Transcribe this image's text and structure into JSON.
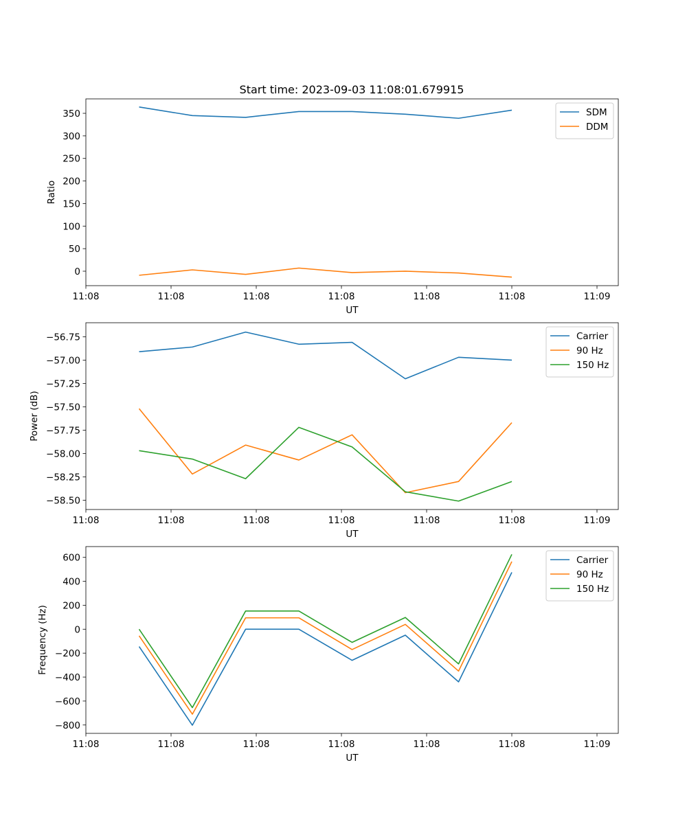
{
  "figure": {
    "title": "Start time: 2023-09-03 11:08:01.679915"
  },
  "colors": {
    "blue": "#1f77b4",
    "orange": "#ff7f0e",
    "green": "#2ca02c"
  },
  "chart_data": [
    {
      "type": "line",
      "title": "Start time: 2023-09-03 11:08:01.679915",
      "xlabel": "UT",
      "ylabel": "Ratio",
      "x": [
        1,
        2,
        3,
        4,
        5,
        6,
        7,
        8
      ],
      "xlim": [
        0,
        10
      ],
      "x_ticks": [
        0,
        1.6,
        3.2,
        4.8,
        6.4,
        8.0,
        9.6
      ],
      "x_tick_labels": [
        "11:08",
        "11:08",
        "11:08",
        "11:08",
        "11:08",
        "11:08",
        "11:09"
      ],
      "ylim": [
        -32,
        382
      ],
      "y_ticks": [
        0,
        50,
        100,
        150,
        200,
        250,
        300,
        350
      ],
      "y_tick_labels": [
        "0",
        "50",
        "100",
        "150",
        "200",
        "250",
        "300",
        "350"
      ],
      "legend_position": "top-right",
      "series": [
        {
          "name": "SDM",
          "color": "#1f77b4",
          "values": [
            364,
            345,
            341,
            354,
            354,
            348,
            339,
            357
          ]
        },
        {
          "name": "DDM",
          "color": "#ff7f0e",
          "values": [
            -9,
            3,
            -7,
            7,
            -3,
            0,
            -4,
            -13
          ]
        }
      ]
    },
    {
      "type": "line",
      "xlabel": "UT",
      "ylabel": "Power (dB)",
      "x": [
        1,
        2,
        3,
        4,
        5,
        6,
        7,
        8
      ],
      "xlim": [
        0,
        10
      ],
      "x_ticks": [
        0,
        1.6,
        3.2,
        4.8,
        6.4,
        8.0,
        9.6
      ],
      "x_tick_labels": [
        "11:08",
        "11:08",
        "11:08",
        "11:08",
        "11:08",
        "11:08",
        "11:09"
      ],
      "ylim": [
        -58.6,
        -56.6
      ],
      "y_ticks": [
        -58.5,
        -58.25,
        -58.0,
        -57.75,
        -57.5,
        -57.25,
        -57.0,
        -56.75
      ],
      "y_tick_labels": [
        "−58.50",
        "−58.25",
        "−58.00",
        "−57.75",
        "−57.50",
        "−57.25",
        "−57.00",
        "−56.75"
      ],
      "legend_position": "top-right",
      "series": [
        {
          "name": "Carrier",
          "color": "#1f77b4",
          "values": [
            -56.91,
            -56.86,
            -56.7,
            -56.83,
            -56.81,
            -57.2,
            -56.97,
            -57.0
          ]
        },
        {
          "name": "90 Hz",
          "color": "#ff7f0e",
          "values": [
            -57.52,
            -58.22,
            -57.91,
            -58.07,
            -57.8,
            -58.42,
            -58.3,
            -57.67
          ]
        },
        {
          "name": "150 Hz",
          "color": "#2ca02c",
          "values": [
            -57.97,
            -58.06,
            -58.27,
            -57.72,
            -57.93,
            -58.41,
            -58.51,
            -58.3
          ]
        }
      ]
    },
    {
      "type": "line",
      "xlabel": "UT",
      "ylabel": "Frequency (Hz)",
      "x": [
        1,
        2,
        3,
        4,
        5,
        6,
        7,
        8
      ],
      "xlim": [
        0,
        10
      ],
      "x_ticks": [
        0,
        1.6,
        3.2,
        4.8,
        6.4,
        8.0,
        9.6
      ],
      "x_tick_labels": [
        "11:08",
        "11:08",
        "11:08",
        "11:08",
        "11:08",
        "11:08",
        "11:09"
      ],
      "ylim": [
        -870,
        690
      ],
      "y_ticks": [
        -800,
        -600,
        -400,
        -200,
        0,
        200,
        400,
        600
      ],
      "y_tick_labels": [
        "−800",
        "−600",
        "−400",
        "−200",
        "0",
        "200",
        "400",
        "600"
      ],
      "legend_position": "top-right",
      "series": [
        {
          "name": "Carrier",
          "color": "#1f77b4",
          "values": [
            -145,
            -802,
            0,
            0,
            -260,
            -50,
            -440,
            475
          ]
        },
        {
          "name": "90 Hz",
          "color": "#ff7f0e",
          "values": [
            -55,
            -710,
            95,
            95,
            -170,
            40,
            -350,
            565
          ]
        },
        {
          "name": "150 Hz",
          "color": "#2ca02c",
          "values": [
            0,
            -655,
            152,
            152,
            -110,
            98,
            -290,
            625
          ]
        }
      ]
    }
  ]
}
